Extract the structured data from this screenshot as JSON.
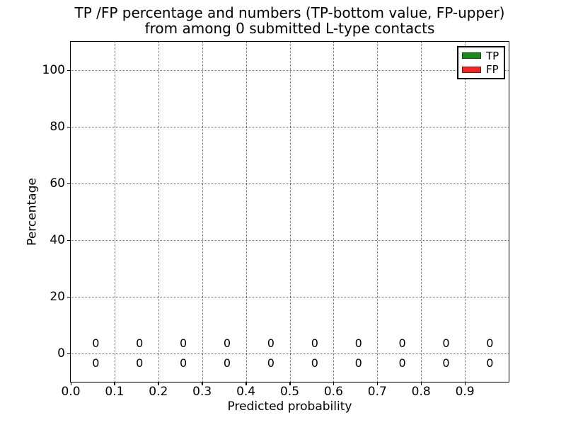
{
  "figure": {
    "background": "#ffffff"
  },
  "title": {
    "line1": "TP /FP percentage and numbers (TP-bottom value, FP-upper)",
    "line2": "from among 0 submitted L-type contacts"
  },
  "axes": {
    "xlabel": "Predicted probability",
    "ylabel": "Percentage",
    "x_tick_labels": [
      "0.0",
      "0.1",
      "0.2",
      "0.3",
      "0.4",
      "0.5",
      "0.6",
      "0.7",
      "0.8",
      "0.9"
    ],
    "y_tick_labels": [
      "0",
      "20",
      "40",
      "60",
      "80",
      "100"
    ]
  },
  "legend": {
    "position": "upper-right",
    "items": [
      {
        "label": "TP",
        "color": "#1a8a1a"
      },
      {
        "label": "FP",
        "color": "#f52420"
      }
    ]
  },
  "chart_data": {
    "type": "bar",
    "stacked": true,
    "title": "TP /FP percentage and numbers (TP-bottom value, FP-upper) from among 0 submitted L-type contacts",
    "xlabel": "Predicted probability",
    "ylabel": "Percentage",
    "xlim": [
      0.0,
      1.0
    ],
    "ylim": [
      -10,
      110
    ],
    "x_ticks": [
      0.0,
      0.1,
      0.2,
      0.3,
      0.4,
      0.5,
      0.6,
      0.7,
      0.8,
      0.9
    ],
    "y_ticks": [
      0,
      20,
      40,
      60,
      80,
      100
    ],
    "grid": true,
    "grid_style": "dotted",
    "legend_position": "upper right",
    "categories": [
      0.057,
      0.157,
      0.257,
      0.357,
      0.457,
      0.557,
      0.657,
      0.757,
      0.857,
      0.957
    ],
    "series": [
      {
        "name": "TP",
        "color": "#1a8a1a",
        "values": [
          0,
          0,
          0,
          0,
          0,
          0,
          0,
          0,
          0,
          0
        ]
      },
      {
        "name": "FP",
        "color": "#f52420",
        "values": [
          0,
          0,
          0,
          0,
          0,
          0,
          0,
          0,
          0,
          0
        ]
      }
    ],
    "annotations": {
      "upper_row": {
        "series": "FP",
        "y": 3.5,
        "labels": [
          "0",
          "0",
          "0",
          "0",
          "0",
          "0",
          "0",
          "0",
          "0",
          "0"
        ]
      },
      "lower_row": {
        "series": "TP",
        "y": -3.5,
        "labels": [
          "0",
          "0",
          "0",
          "0",
          "0",
          "0",
          "0",
          "0",
          "0",
          "0"
        ]
      }
    }
  }
}
